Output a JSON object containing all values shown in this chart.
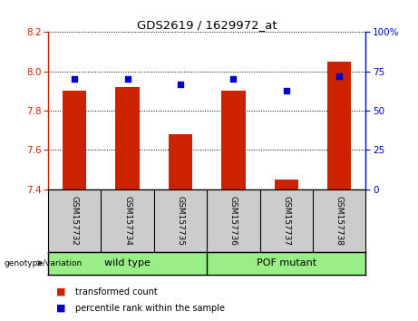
{
  "title": "GDS2619 / 1629972_at",
  "samples": [
    "GSM157732",
    "GSM157734",
    "GSM157735",
    "GSM157736",
    "GSM157737",
    "GSM157738"
  ],
  "transformed_count": [
    7.9,
    7.92,
    7.68,
    7.9,
    7.45,
    8.05
  ],
  "percentile_rank": [
    70,
    70,
    67,
    70,
    63,
    72
  ],
  "ylim_left": [
    7.4,
    8.2
  ],
  "ylim_right": [
    0,
    100
  ],
  "yticks_left": [
    7.4,
    7.6,
    7.8,
    8.0,
    8.2
  ],
  "yticks_right": [
    0,
    25,
    50,
    75,
    100
  ],
  "ytick_labels_right": [
    "0",
    "25",
    "50",
    "75",
    "100%"
  ],
  "bar_color": "#cc2200",
  "dot_color": "#0000cc",
  "bar_bottom": 7.4,
  "group_labels": [
    "wild type",
    "POF mutant"
  ],
  "group_label_prefix": "genotype/variation",
  "legend_items": [
    {
      "label": "transformed count",
      "color": "#cc2200"
    },
    {
      "label": "percentile rank within the sample",
      "color": "#0000cc"
    }
  ],
  "background_color": "#ffffff",
  "tick_area_bg": "#cccccc",
  "group_area_bg": "#99ee88"
}
